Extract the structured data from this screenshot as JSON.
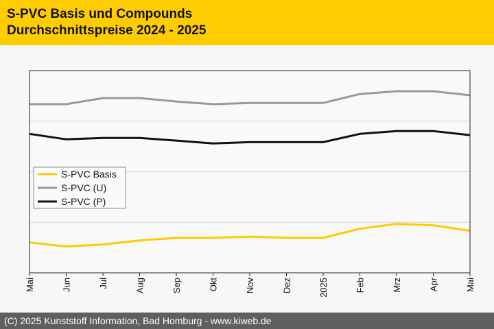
{
  "header": {
    "title_line1": "S-PVC Basis und Compounds",
    "title_line2": "Durchschnittspreise 2024 - 2025",
    "background": "#ffcc00"
  },
  "footer": {
    "text": "(C) 2025 Kunststoff Information, Bad Homburg - www.kiweb.de",
    "background": "#5f5f5f"
  },
  "chart_data": {
    "type": "line",
    "categories": [
      "Mai",
      "Jun",
      "Jul",
      "Aug",
      "Sep",
      "Okt",
      "Nov",
      "Dez",
      "2025",
      "Feb",
      "Mrz",
      "Apr",
      "Mai"
    ],
    "ylim": [
      0,
      100
    ],
    "grid": true,
    "legend_position": "middle-left",
    "series": [
      {
        "name": "S-PVC Basis",
        "color": "#ffcc00",
        "values": [
          15,
          13,
          14,
          16,
          17.3,
          17.3,
          17.9,
          17.3,
          17.3,
          21.8,
          24.2,
          23.5,
          20.8
        ]
      },
      {
        "name": "S-PVC (U)",
        "color": "#999999",
        "values": [
          83.4,
          83.4,
          86.4,
          86.4,
          84.7,
          83.4,
          84,
          84,
          84,
          88.4,
          89.8,
          89.8,
          87.8
        ]
      },
      {
        "name": "S-PVC (P)",
        "color": "#111111",
        "values": [
          68.7,
          66,
          66.7,
          66.7,
          65.4,
          64,
          64.6,
          64.6,
          64.6,
          68.7,
          70.1,
          70.1,
          68.1
        ]
      }
    ]
  }
}
